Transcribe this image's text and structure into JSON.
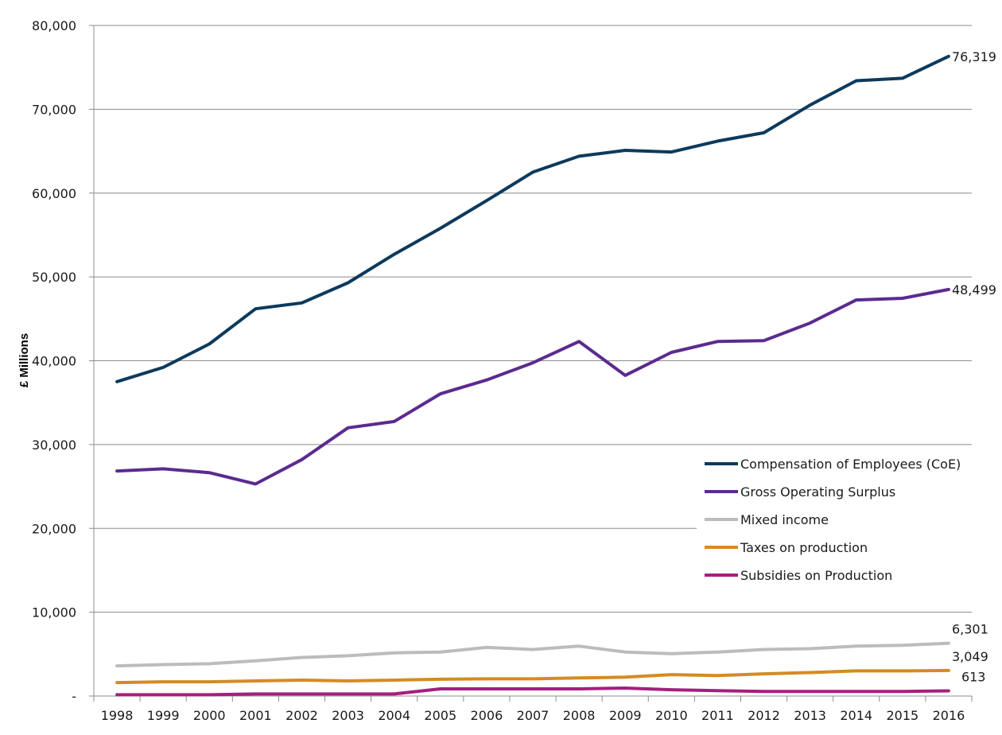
{
  "chart_data": {
    "type": "line",
    "title": "",
    "xlabel": "",
    "ylabel": "£ Millions",
    "ylim": [
      0,
      80000
    ],
    "yticks": [
      0,
      10000,
      20000,
      30000,
      40000,
      50000,
      60000,
      70000,
      80000
    ],
    "ytick_labels": [
      "-",
      "10,000",
      "20,000",
      "30,000",
      "40,000",
      "50,000",
      "60,000",
      "70,000",
      "80,000"
    ],
    "grid": true,
    "legend_position": "right-middle",
    "x": [
      "1998",
      "1999",
      "2000",
      "2001",
      "2002",
      "2003",
      "2004",
      "2005",
      "2006",
      "2007",
      "2008",
      "2009",
      "2010",
      "2011",
      "2012",
      "2013",
      "2014",
      "2015",
      "2016"
    ],
    "series": [
      {
        "name": "Compensation of Employees (CoE)",
        "color": "#0d3a5c",
        "values": [
          37500,
          39200,
          42000,
          46200,
          46900,
          49300,
          52700,
          55800,
          59100,
          62500,
          64400,
          65100,
          64900,
          66200,
          67200,
          70500,
          73400,
          73700,
          76319
        ],
        "end_label": "76,319"
      },
      {
        "name": "Gross Operating Surplus",
        "color": "#5b2b8f",
        "values": [
          26850,
          27100,
          26650,
          25300,
          28200,
          32000,
          32750,
          36050,
          37700,
          39750,
          42300,
          38250,
          41000,
          42300,
          42400,
          44500,
          47250,
          47450,
          48499
        ],
        "end_label": "48,499"
      },
      {
        "name": "Mixed income",
        "color": "#bcbcbc",
        "values": [
          3600,
          3750,
          3850,
          4200,
          4600,
          4800,
          5150,
          5250,
          5800,
          5550,
          5950,
          5250,
          5050,
          5250,
          5550,
          5650,
          5950,
          6050,
          6301
        ],
        "end_label": "6,301"
      },
      {
        "name": "Taxes on production",
        "color": "#d48b24",
        "values": [
          1600,
          1700,
          1700,
          1800,
          1900,
          1800,
          1900,
          2000,
          2050,
          2050,
          2150,
          2250,
          2550,
          2450,
          2650,
          2800,
          3000,
          3000,
          3049
        ],
        "end_label": "3,049"
      },
      {
        "name": "Subsidies on Production",
        "color": "#a3207e",
        "values": [
          150,
          150,
          150,
          250,
          250,
          250,
          250,
          850,
          850,
          850,
          850,
          950,
          750,
          650,
          550,
          550,
          550,
          550,
          613
        ],
        "end_label": "613"
      }
    ]
  }
}
